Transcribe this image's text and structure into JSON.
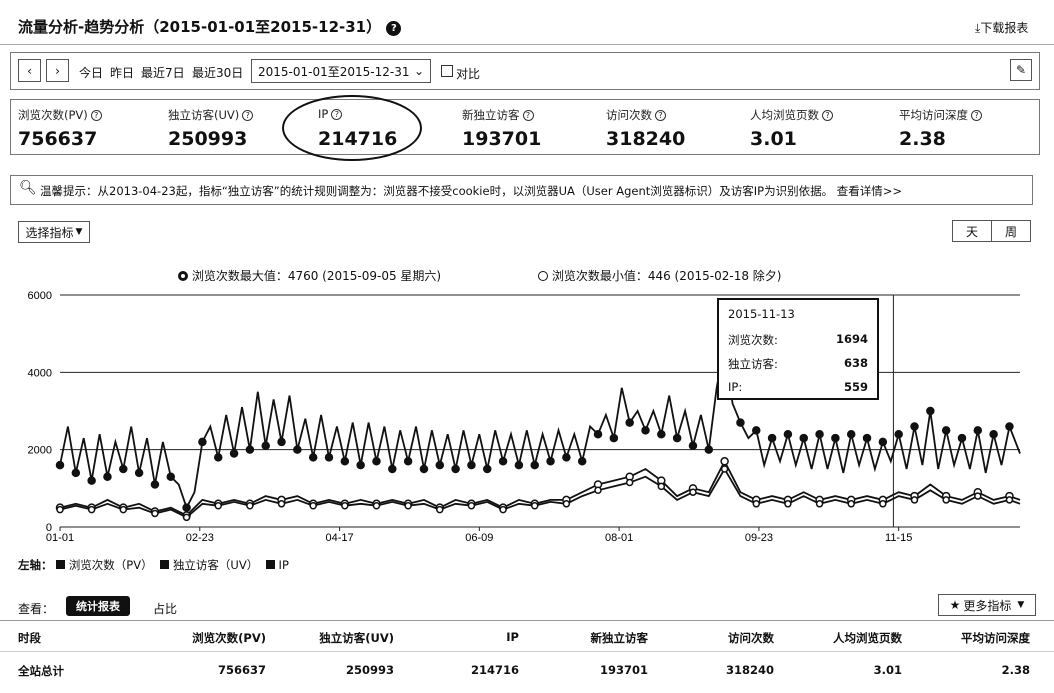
{
  "header": {
    "title": "流量分析-趋势分析（2015-01-01至2015-12-31）",
    "download_label": "下载报表"
  },
  "toolbar": {
    "quick_ranges": [
      "今日",
      "昨日",
      "最近7日",
      "最近30日"
    ],
    "date_range": "2015-01-01至2015-12-31",
    "compare_label": "对比",
    "compare_checked": false
  },
  "metrics": [
    {
      "label": "浏览次数(PV)",
      "value": "756637"
    },
    {
      "label": "独立访客(UV)",
      "value": "250993"
    },
    {
      "label": "IP",
      "value": "214716"
    },
    {
      "label": "新独立访客",
      "value": "193701"
    },
    {
      "label": "访问次数",
      "value": "318240"
    },
    {
      "label": "人均浏览页数",
      "value": "3.01"
    },
    {
      "label": "平均访问深度",
      "value": "2.38"
    }
  ],
  "notice": "温馨提示：从2013-04-23起，指标“独立访客”的统计规则调整为：浏览器不接受cookie时，以浏览器UA（User Agent浏览器标识）及访客IP为识别依据。 查看详情>>",
  "chart_controls": {
    "select_metric_label": "选择指标",
    "granularity": [
      "天",
      "周"
    ]
  },
  "chart_data": {
    "type": "line",
    "legend_top": [
      "浏览次数最大值：4760 (2015-09-05 星期六)",
      "浏览次数最小值：446 (2015-02-18 除夕)"
    ],
    "x_ticks": [
      "01-01",
      "02-23",
      "04-17",
      "06-09",
      "08-01",
      "09-23",
      "11-15"
    ],
    "y_ticks": [
      "6000",
      "4000",
      "2000",
      "0"
    ],
    "ylim": [
      0,
      6000
    ],
    "xlim_days": [
      0,
      364
    ],
    "series": [
      {
        "name": "浏览次数（PV）",
        "points": [
          [
            0,
            1600
          ],
          [
            3,
            2600
          ],
          [
            6,
            1400
          ],
          [
            9,
            2300
          ],
          [
            12,
            1200
          ],
          [
            15,
            2400
          ],
          [
            18,
            1300
          ],
          [
            21,
            2200
          ],
          [
            24,
            1500
          ],
          [
            27,
            2600
          ],
          [
            30,
            1400
          ],
          [
            33,
            2300
          ],
          [
            36,
            1100
          ],
          [
            39,
            2200
          ],
          [
            42,
            1300
          ],
          [
            45,
            1100
          ],
          [
            48,
            500
          ],
          [
            51,
            900
          ],
          [
            54,
            2200
          ],
          [
            57,
            2600
          ],
          [
            60,
            1800
          ],
          [
            63,
            2900
          ],
          [
            66,
            1900
          ],
          [
            69,
            3100
          ],
          [
            72,
            2000
          ],
          [
            75,
            3500
          ],
          [
            78,
            2100
          ],
          [
            81,
            3300
          ],
          [
            84,
            2200
          ],
          [
            87,
            3400
          ],
          [
            90,
            2000
          ],
          [
            93,
            2800
          ],
          [
            96,
            1800
          ],
          [
            99,
            2900
          ],
          [
            102,
            1800
          ],
          [
            105,
            2600
          ],
          [
            108,
            1700
          ],
          [
            111,
            2700
          ],
          [
            114,
            1600
          ],
          [
            117,
            2700
          ],
          [
            120,
            1700
          ],
          [
            123,
            2600
          ],
          [
            126,
            1500
          ],
          [
            129,
            2500
          ],
          [
            132,
            1700
          ],
          [
            135,
            2600
          ],
          [
            138,
            1500
          ],
          [
            141,
            2500
          ],
          [
            144,
            1600
          ],
          [
            147,
            2400
          ],
          [
            150,
            1500
          ],
          [
            153,
            2500
          ],
          [
            156,
            1600
          ],
          [
            159,
            2400
          ],
          [
            162,
            1500
          ],
          [
            165,
            2500
          ],
          [
            168,
            1700
          ],
          [
            171,
            2400
          ],
          [
            174,
            1600
          ],
          [
            177,
            2500
          ],
          [
            180,
            1600
          ],
          [
            183,
            2400
          ],
          [
            186,
            1700
          ],
          [
            189,
            2500
          ],
          [
            192,
            1800
          ],
          [
            195,
            2400
          ],
          [
            198,
            1700
          ],
          [
            201,
            2600
          ],
          [
            204,
            2400
          ],
          [
            207,
            2900
          ],
          [
            210,
            2300
          ],
          [
            213,
            3600
          ],
          [
            216,
            2700
          ],
          [
            219,
            3000
          ],
          [
            222,
            2500
          ],
          [
            225,
            3000
          ],
          [
            228,
            2400
          ],
          [
            231,
            3400
          ],
          [
            234,
            2300
          ],
          [
            237,
            3000
          ],
          [
            240,
            2100
          ],
          [
            243,
            2900
          ],
          [
            246,
            2000
          ],
          [
            249,
            3600
          ],
          [
            252,
            4760
          ],
          [
            255,
            3200
          ],
          [
            258,
            2700
          ],
          [
            261,
            2300
          ],
          [
            264,
            2500
          ],
          [
            267,
            1600
          ],
          [
            270,
            2300
          ],
          [
            273,
            1700
          ],
          [
            276,
            2400
          ],
          [
            279,
            1600
          ],
          [
            282,
            2300
          ],
          [
            285,
            1500
          ],
          [
            288,
            2400
          ],
          [
            291,
            1500
          ],
          [
            294,
            2300
          ],
          [
            297,
            1400
          ],
          [
            300,
            2400
          ],
          [
            303,
            1600
          ],
          [
            306,
            2300
          ],
          [
            309,
            1500
          ],
          [
            312,
            2200
          ],
          [
            315,
            1700
          ],
          [
            318,
            2400
          ],
          [
            321,
            1500
          ],
          [
            324,
            2600
          ],
          [
            327,
            1600
          ],
          [
            330,
            3000
          ],
          [
            333,
            1500
          ],
          [
            336,
            2500
          ],
          [
            339,
            1600
          ],
          [
            342,
            2300
          ],
          [
            345,
            1500
          ],
          [
            348,
            2500
          ],
          [
            351,
            1400
          ],
          [
            354,
            2400
          ],
          [
            357,
            1600
          ],
          [
            360,
            2600
          ],
          [
            364,
            1900
          ]
        ]
      },
      {
        "name": "独立访客（UV）",
        "points": [
          [
            0,
            500
          ],
          [
            6,
            600
          ],
          [
            12,
            500
          ],
          [
            18,
            700
          ],
          [
            24,
            500
          ],
          [
            30,
            600
          ],
          [
            36,
            400
          ],
          [
            42,
            500
          ],
          [
            48,
            300
          ],
          [
            54,
            700
          ],
          [
            60,
            600
          ],
          [
            66,
            700
          ],
          [
            72,
            600
          ],
          [
            78,
            800
          ],
          [
            84,
            700
          ],
          [
            90,
            800
          ],
          [
            96,
            600
          ],
          [
            102,
            700
          ],
          [
            108,
            600
          ],
          [
            114,
            700
          ],
          [
            120,
            600
          ],
          [
            126,
            700
          ],
          [
            132,
            600
          ],
          [
            138,
            700
          ],
          [
            144,
            500
          ],
          [
            150,
            700
          ],
          [
            156,
            600
          ],
          [
            162,
            700
          ],
          [
            168,
            500
          ],
          [
            174,
            700
          ],
          [
            180,
            600
          ],
          [
            186,
            700
          ],
          [
            192,
            700
          ],
          [
            198,
            900
          ],
          [
            204,
            1100
          ],
          [
            210,
            1200
          ],
          [
            216,
            1300
          ],
          [
            222,
            1500
          ],
          [
            228,
            1200
          ],
          [
            234,
            800
          ],
          [
            240,
            1000
          ],
          [
            246,
            900
          ],
          [
            252,
            1700
          ],
          [
            258,
            900
          ],
          [
            264,
            700
          ],
          [
            270,
            800
          ],
          [
            276,
            700
          ],
          [
            282,
            900
          ],
          [
            288,
            700
          ],
          [
            294,
            800
          ],
          [
            300,
            700
          ],
          [
            306,
            800
          ],
          [
            312,
            700
          ],
          [
            318,
            900
          ],
          [
            324,
            800
          ],
          [
            330,
            1100
          ],
          [
            336,
            800
          ],
          [
            342,
            700
          ],
          [
            348,
            900
          ],
          [
            354,
            700
          ],
          [
            360,
            800
          ],
          [
            364,
            700
          ]
        ]
      },
      {
        "name": "IP",
        "points": [
          [
            0,
            450
          ],
          [
            6,
            550
          ],
          [
            12,
            450
          ],
          [
            18,
            600
          ],
          [
            24,
            450
          ],
          [
            30,
            500
          ],
          [
            36,
            350
          ],
          [
            42,
            450
          ],
          [
            48,
            250
          ],
          [
            54,
            600
          ],
          [
            60,
            550
          ],
          [
            66,
            650
          ],
          [
            72,
            550
          ],
          [
            78,
            700
          ],
          [
            84,
            600
          ],
          [
            90,
            700
          ],
          [
            96,
            550
          ],
          [
            102,
            650
          ],
          [
            108,
            550
          ],
          [
            114,
            600
          ],
          [
            120,
            550
          ],
          [
            126,
            650
          ],
          [
            132,
            550
          ],
          [
            138,
            600
          ],
          [
            144,
            450
          ],
          [
            150,
            600
          ],
          [
            156,
            550
          ],
          [
            162,
            650
          ],
          [
            168,
            450
          ],
          [
            174,
            600
          ],
          [
            180,
            550
          ],
          [
            186,
            650
          ],
          [
            192,
            600
          ],
          [
            198,
            800
          ],
          [
            204,
            950
          ],
          [
            210,
            1050
          ],
          [
            216,
            1150
          ],
          [
            222,
            1300
          ],
          [
            228,
            1050
          ],
          [
            234,
            700
          ],
          [
            240,
            900
          ],
          [
            246,
            800
          ],
          [
            252,
            1500
          ],
          [
            258,
            800
          ],
          [
            264,
            600
          ],
          [
            270,
            700
          ],
          [
            276,
            600
          ],
          [
            282,
            800
          ],
          [
            288,
            600
          ],
          [
            294,
            700
          ],
          [
            300,
            600
          ],
          [
            306,
            700
          ],
          [
            312,
            600
          ],
          [
            318,
            800
          ],
          [
            324,
            700
          ],
          [
            330,
            950
          ],
          [
            336,
            700
          ],
          [
            342,
            600
          ],
          [
            348,
            800
          ],
          [
            354,
            600
          ],
          [
            360,
            700
          ],
          [
            364,
            600
          ]
        ]
      }
    ],
    "tooltip": {
      "date": "2015-11-13",
      "rows": [
        {
          "label": "浏览次数:",
          "value": "1694"
        },
        {
          "label": "独立访客:",
          "value": "638"
        },
        {
          "label": "IP:",
          "value": "559"
        }
      ]
    },
    "crosshair_day": 316,
    "axis_legend_prefix": "左轴：",
    "axis_legend": [
      "浏览次数（PV）",
      "独立访客（UV）",
      "IP"
    ]
  },
  "view_tabs": {
    "label": "查看：",
    "tabs": [
      "统计报表",
      "占比"
    ],
    "more_label": "更多指标"
  },
  "table": {
    "headers": [
      "时段",
      "浏览次数(PV)",
      "独立访客(UV)",
      "IP",
      "新独立访客",
      "访问次数",
      "人均浏览页数",
      "平均访问深度"
    ],
    "rows": [
      [
        "全站总计",
        "756637",
        "250993",
        "214716",
        "193701",
        "318240",
        "3.01",
        "2.38"
      ]
    ]
  }
}
